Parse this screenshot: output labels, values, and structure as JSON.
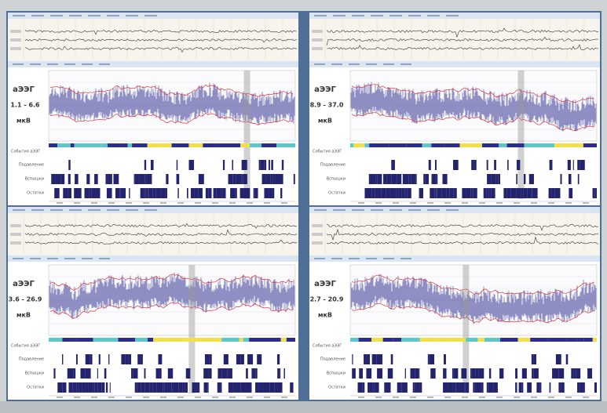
{
  "panels": [
    {
      "label": "аЭЭГ",
      "range": "1.1 - 6.6",
      "unit": "мкВ",
      "events_label": "События аЭЭГ",
      "rows": [
        "Подавление",
        "Вспышки",
        "Остатки"
      ]
    },
    {
      "label": "аЭЭГ",
      "range": "8.9 - 37.0",
      "unit": "мкВ",
      "events_label": "События аЭЭГ",
      "rows": [
        "Подавление",
        "Вспышки",
        "Остатки"
      ]
    },
    {
      "label": "аЭЭГ",
      "range": "3.6 - 26.9",
      "unit": "мкВ",
      "events_label": "События аЭЭГ",
      "rows": [
        "Подавление",
        "Вспышки",
        "Остатки"
      ]
    },
    {
      "label": "аЭЭГ",
      "range": "2.7 - 20.9",
      "unit": "мкВ",
      "events_label": "События аЭЭГ",
      "rows": [
        "Подавление",
        "Вспышки",
        "Остатки"
      ]
    }
  ]
}
